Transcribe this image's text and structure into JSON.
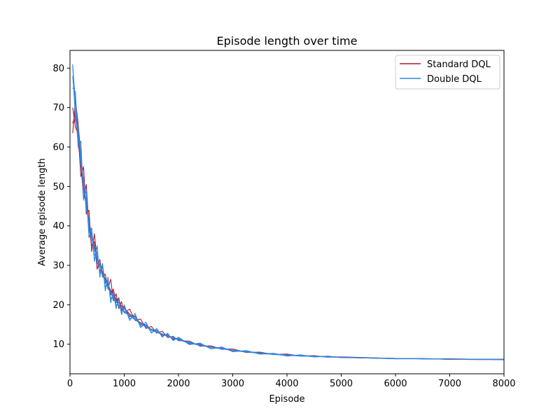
{
  "chart_data": {
    "type": "line",
    "title": "Episode length over time",
    "xlabel": "Episode",
    "ylabel": "Average episode length",
    "xlim": [
      0,
      8000
    ],
    "ylim": [
      2.5,
      84.5
    ],
    "xticks": [
      0,
      1000,
      2000,
      3000,
      4000,
      5000,
      6000,
      7000,
      8000
    ],
    "yticks": [
      10,
      20,
      30,
      40,
      50,
      60,
      70,
      80
    ],
    "grid": false,
    "legend": "top-right",
    "x": [
      50,
      100,
      150,
      200,
      250,
      300,
      350,
      400,
      450,
      500,
      550,
      600,
      650,
      700,
      750,
      800,
      850,
      900,
      950,
      1000,
      1100,
      1200,
      1300,
      1400,
      1500,
      1600,
      1700,
      1800,
      1900,
      2000,
      2200,
      2400,
      2600,
      2800,
      3000,
      3250,
      3500,
      3750,
      4000,
      4250,
      4500,
      4750,
      5000,
      5500,
      6000,
      6500,
      7000,
      7500,
      8000
    ],
    "series": [
      {
        "name": "Standard DQL",
        "color": "#b2182b",
        "runs": [
          [
            63.5,
            72.0,
            66.0,
            58.0,
            51.0,
            46.0,
            41.5,
            37.5,
            34.5,
            32.0,
            30.0,
            28.2,
            26.5,
            25.0,
            23.7,
            22.5,
            21.5,
            20.5,
            19.7,
            19.0,
            17.7,
            16.5,
            15.5,
            14.6,
            13.8,
            13.2,
            12.6,
            12.1,
            11.6,
            11.2,
            10.4,
            9.8,
            9.3,
            8.9,
            8.5,
            8.1,
            7.8,
            7.5,
            7.3,
            7.1,
            6.9,
            6.8,
            6.7,
            6.5,
            6.4,
            6.3,
            6.2,
            6.2,
            6.1
          ],
          [
            66.0,
            68.5,
            61.0,
            56.0,
            47.0,
            50.5,
            39.5,
            35.0,
            36.0,
            29.0,
            31.5,
            27.0,
            27.8,
            24.0,
            26.5,
            21.0,
            22.8,
            19.0,
            20.8,
            18.0,
            18.9,
            16.0,
            16.4,
            14.0,
            14.5,
            12.8,
            13.3,
            11.7,
            12.0,
            10.9,
            10.8,
            9.5,
            9.6,
            8.7,
            8.8,
            7.9,
            8.0,
            7.4,
            7.5,
            7.0,
            7.1,
            6.7,
            6.8,
            6.6,
            6.4,
            6.3,
            6.3,
            6.2,
            6.2
          ],
          [
            70.0,
            65.0,
            63.5,
            52.5,
            55.0,
            43.0,
            44.0,
            33.5,
            38.0,
            31.0,
            28.5,
            30.0,
            25.5,
            26.0,
            22.5,
            24.0,
            20.5,
            21.8,
            18.5,
            19.5,
            17.0,
            17.2,
            15.0,
            15.0,
            13.5,
            13.6,
            12.3,
            12.3,
            11.3,
            11.4,
            10.2,
            10.0,
            9.2,
            9.1,
            8.4,
            8.2,
            7.7,
            7.6,
            7.2,
            7.2,
            6.9,
            6.9,
            6.7,
            6.5,
            6.4,
            6.3,
            6.2,
            6.1,
            6.1
          ]
        ]
      },
      {
        "name": "Double DQL",
        "color": "#2e86de",
        "runs": [
          [
            80.5,
            71.5,
            64.0,
            57.0,
            50.0,
            45.0,
            40.5,
            37.0,
            34.0,
            31.8,
            29.8,
            27.8,
            26.0,
            24.5,
            23.0,
            21.8,
            20.8,
            19.9,
            19.1,
            18.4,
            17.2,
            16.2,
            15.2,
            14.3,
            13.6,
            13.0,
            12.5,
            12.0,
            11.5,
            11.1,
            10.3,
            9.7,
            9.2,
            8.8,
            8.4,
            8.0,
            7.7,
            7.4,
            7.2,
            7.0,
            6.9,
            6.8,
            6.7,
            6.5,
            6.4,
            6.3,
            6.2,
            6.2,
            6.1
          ],
          [
            78.0,
            69.0,
            62.0,
            59.0,
            48.5,
            47.0,
            38.5,
            38.5,
            32.5,
            33.5,
            28.0,
            29.5,
            24.5,
            25.8,
            21.5,
            22.5,
            19.8,
            20.8,
            18.0,
            19.2,
            16.5,
            17.0,
            14.6,
            15.0,
            13.0,
            13.6,
            12.0,
            12.5,
            11.1,
            11.5,
            10.0,
            10.1,
            8.9,
            9.1,
            8.2,
            8.3,
            7.5,
            7.6,
            7.1,
            7.2,
            6.8,
            6.9,
            6.6,
            6.5,
            6.3,
            6.3,
            6.2,
            6.2,
            6.1
          ],
          [
            75.0,
            74.0,
            60.0,
            61.5,
            46.5,
            49.0,
            37.0,
            39.5,
            31.0,
            35.0,
            27.0,
            30.5,
            23.5,
            27.0,
            20.5,
            23.5,
            19.0,
            21.5,
            17.5,
            20.0,
            16.0,
            17.8,
            14.2,
            15.6,
            12.8,
            14.0,
            11.8,
            12.8,
            10.9,
            11.8,
            9.9,
            10.3,
            8.8,
            9.3,
            8.1,
            8.4,
            7.5,
            7.7,
            7.0,
            7.3,
            6.8,
            7.0,
            6.6,
            6.6,
            6.3,
            6.4,
            6.2,
            6.2,
            6.1
          ],
          [
            81.0,
            66.5,
            65.5,
            55.0,
            52.0,
            44.0,
            42.0,
            35.5,
            35.0,
            30.5,
            30.5,
            27.0,
            26.8,
            24.0,
            23.5,
            21.0,
            21.2,
            19.5,
            19.4,
            18.0,
            17.4,
            16.5,
            15.4,
            14.5,
            13.8,
            13.2,
            12.6,
            12.2,
            11.7,
            11.3,
            10.5,
            9.8,
            9.3,
            8.9,
            8.5,
            8.1,
            7.8,
            7.5,
            7.3,
            7.1,
            7.0,
            6.8,
            6.7,
            6.5,
            6.4,
            6.3,
            6.2,
            6.2,
            6.2
          ]
        ]
      }
    ]
  }
}
